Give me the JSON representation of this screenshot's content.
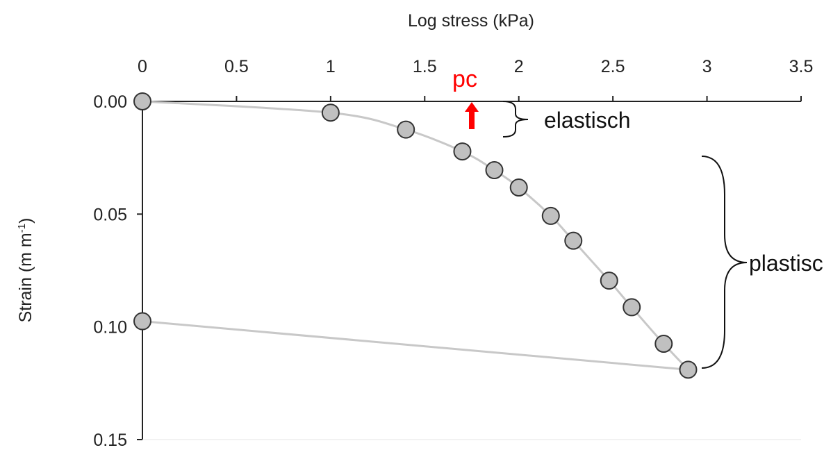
{
  "chart_data": {
    "type": "scatter",
    "title": "",
    "xlabel": "Log stress  (kPa)",
    "ylabel_main": "Strain (m m",
    "ylabel_sup": "-1",
    "ylabel_end": ")",
    "xlim": [
      0,
      3.5
    ],
    "ylim": [
      0,
      0.15
    ],
    "y_inverted": true,
    "x_axis_position": "top",
    "grid": false,
    "x_ticks": [
      "0",
      "0.5",
      "1",
      "1.5",
      "2",
      "2.5",
      "3",
      "3.5"
    ],
    "y_ticks": [
      "0.00",
      "0.05",
      "0.10",
      "0.15"
    ],
    "series": [
      {
        "x": [
          0,
          1.0,
          1.4,
          1.7,
          1.87,
          2.0,
          2.17,
          2.29,
          2.48,
          2.6,
          2.77,
          2.9,
          0
        ],
        "y": [
          0.0,
          0.005,
          0.0125,
          0.0222,
          0.0305,
          0.0382,
          0.0508,
          0.0618,
          0.0795,
          0.0913,
          0.1075,
          0.119,
          0.0975
        ]
      }
    ],
    "colors": {
      "marker_fill": "#c0c0c0",
      "marker_stroke": "#333333",
      "line": "#c8c8c8",
      "axis": "#222222",
      "pc": "#ff0000"
    },
    "annotations": {
      "pc_label": "pc",
      "pc_x": 1.75,
      "elastic_label": "elastisch",
      "plastic_label": "plastisch"
    }
  }
}
